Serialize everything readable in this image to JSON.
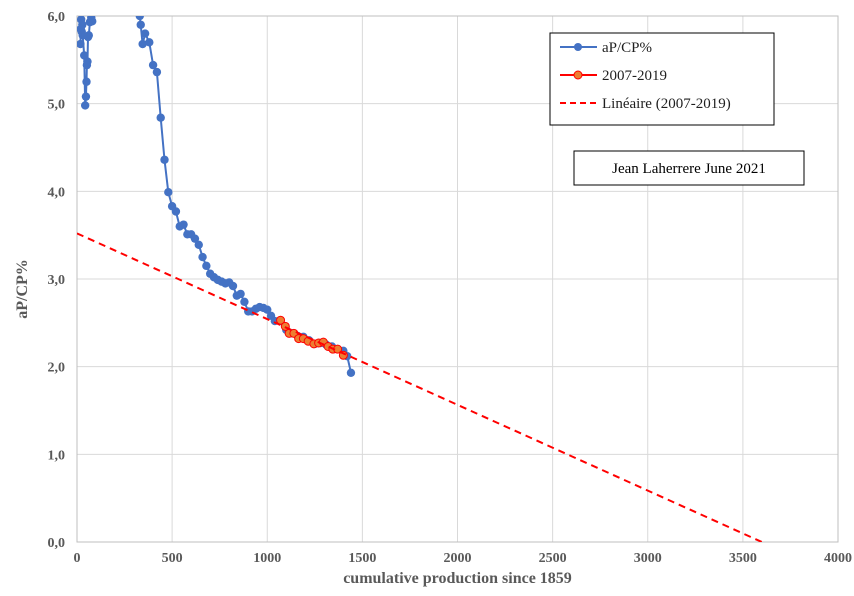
{
  "chart_data": {
    "type": "scatter",
    "xlabel": "cumulative production since 1859",
    "ylabel": "aP/CP%",
    "xlim": [
      0,
      4000
    ],
    "ylim": [
      0,
      6
    ],
    "x_ticks": [
      0,
      500,
      1000,
      1500,
      2000,
      2500,
      3000,
      3500,
      4000
    ],
    "x_tick_labels": [
      "0",
      "500",
      "1000",
      "1500",
      "2000",
      "2500",
      "3000",
      "3500",
      "4000"
    ],
    "y_ticks": [
      0,
      1,
      2,
      3,
      4,
      5,
      6
    ],
    "y_tick_labels": [
      "0,0",
      "1,0",
      "2,0",
      "3,0",
      "4,0",
      "5,0",
      "6,0"
    ],
    "grid": true,
    "legend_position": "top-right",
    "annotation": "Jean Laherrere June 2021",
    "series": [
      {
        "name": "aP/CP%",
        "color": "#4472C4",
        "style": "line-markers",
        "x": [
          18,
          20,
          22,
          25,
          28,
          30,
          38,
          43,
          47,
          50,
          52,
          55,
          58,
          62,
          68,
          75,
          80,
          330,
          335,
          345,
          358,
          380,
          400,
          420,
          440,
          460,
          480,
          500,
          520,
          540,
          560,
          580,
          600,
          620,
          640,
          660,
          680,
          700,
          720,
          740,
          760,
          780,
          800,
          820,
          840,
          860,
          880,
          900,
          920,
          940,
          960,
          980,
          1000,
          1020,
          1040,
          1070,
          1100,
          1130,
          1160,
          1190,
          1220,
          1250,
          1280,
          1310,
          1340,
          1370,
          1400,
          1420,
          1440
        ],
        "y": [
          5.68,
          5.85,
          5.96,
          5.82,
          5.9,
          5.78,
          5.55,
          4.98,
          5.08,
          5.25,
          5.44,
          5.48,
          5.76,
          5.78,
          5.93,
          5.98,
          5.94,
          6.0,
          5.9,
          5.68,
          5.8,
          5.7,
          5.44,
          5.36,
          4.84,
          4.36,
          3.99,
          3.83,
          3.77,
          3.6,
          3.62,
          3.51,
          3.51,
          3.46,
          3.39,
          3.25,
          3.15,
          3.06,
          3.02,
          2.99,
          2.97,
          2.95,
          2.96,
          2.92,
          2.81,
          2.83,
          2.74,
          2.63,
          2.63,
          2.66,
          2.68,
          2.67,
          2.65,
          2.58,
          2.52,
          2.52,
          2.42,
          2.38,
          2.35,
          2.34,
          2.3,
          2.26,
          2.27,
          2.25,
          2.23,
          2.2,
          2.18,
          2.12,
          1.93
        ]
      },
      {
        "name": "2007-2019",
        "color": "#FF0000",
        "marker_fill": "#ED7D31",
        "style": "line-markers",
        "x": [
          1070,
          1095,
          1115,
          1140,
          1165,
          1190,
          1215,
          1245,
          1270,
          1295,
          1320,
          1345,
          1370,
          1400
        ],
        "y": [
          2.53,
          2.46,
          2.38,
          2.38,
          2.32,
          2.32,
          2.29,
          2.26,
          2.27,
          2.28,
          2.23,
          2.2,
          2.2,
          2.13
        ]
      },
      {
        "name": "Linéaire (2007-2019)",
        "color": "#FF0000",
        "style": "dashed-line",
        "x": [
          0,
          3600
        ],
        "y": [
          3.52,
          0
        ]
      }
    ]
  }
}
